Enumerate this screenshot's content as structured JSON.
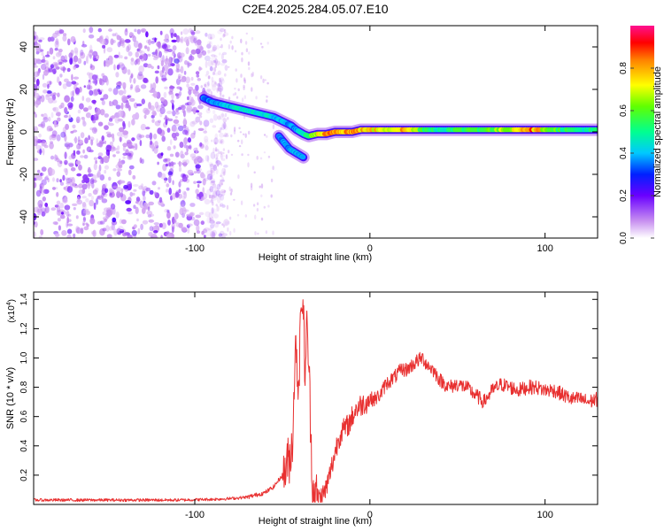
{
  "title": "C2E4.2025.284.05.07.E10",
  "chart_data": [
    {
      "type": "heatmap",
      "xlabel": "Height of straight line (km)",
      "ylabel": "Frequency (Hz)",
      "xlim": [
        -192,
        130
      ],
      "ylim": [
        -50,
        50
      ],
      "xticks": [
        -100,
        0,
        100
      ],
      "xtick_labels": [
        "-100",
        "0",
        "100"
      ],
      "yticks": [
        -40,
        -20,
        0,
        20,
        40
      ],
      "ytick_labels": [
        "-40",
        "-20",
        "0",
        "20",
        "40"
      ],
      "colorbar": {
        "label": "Normalized spectral amplitude",
        "range": [
          0,
          1
        ],
        "ticks": [
          0.0,
          0.2,
          0.4,
          0.6,
          0.8
        ],
        "tick_labels": [
          "0.0",
          "0.2",
          "0.4",
          "0.6",
          "0.8"
        ]
      },
      "noise_region": {
        "x_range": [
          -192,
          -90
        ],
        "y_range": [
          -50,
          48
        ]
      },
      "ridge": {
        "x": [
          -95,
          -90,
          -85,
          -80,
          -75,
          -70,
          -65,
          -60,
          -55,
          -50,
          -45,
          -42,
          -38,
          -35,
          -30,
          -25,
          -20,
          -15,
          -10,
          -5,
          0,
          10,
          20,
          30,
          40,
          50,
          60,
          70,
          80,
          90,
          100,
          110,
          120,
          130
        ],
        "y": [
          16,
          14,
          13,
          12,
          11,
          10,
          9,
          8,
          7,
          5,
          3,
          1,
          -1,
          -2,
          -1,
          -1,
          0,
          0,
          0,
          1,
          1,
          1,
          1,
          1,
          1,
          1,
          1,
          1,
          1,
          1,
          1,
          1,
          1,
          1
        ],
        "amplitude": [
          0.35,
          0.38,
          0.4,
          0.42,
          0.45,
          0.45,
          0.45,
          0.45,
          0.42,
          0.4,
          0.38,
          0.38,
          0.45,
          0.55,
          0.7,
          0.8,
          0.85,
          0.85,
          0.85,
          0.8,
          0.75,
          0.75,
          0.8,
          0.6,
          0.5,
          0.55,
          0.6,
          0.6,
          0.7,
          0.9,
          0.7,
          0.55,
          0.5,
          0.5
        ]
      },
      "branch": {
        "x": [
          -52,
          -50,
          -48,
          -46,
          -44,
          -42,
          -40,
          -38
        ],
        "y": [
          -2,
          -4,
          -6,
          -8,
          -9,
          -10,
          -11,
          -12
        ],
        "amplitude": [
          0.35,
          0.35,
          0.38,
          0.38,
          0.4,
          0.4,
          0.4,
          0.4
        ]
      }
    },
    {
      "type": "line",
      "xlabel": "Height of straight line (km)",
      "ylabel": "SNR (10 * v/v)",
      "y_multiplier_label": "(x10",
      "y_multiplier_exp": "4",
      "y_multiplier_close": ")",
      "xlim": [
        -192,
        130
      ],
      "ylim": [
        0,
        1.45
      ],
      "xticks": [
        -100,
        0,
        100
      ],
      "xtick_labels": [
        "-100",
        "0",
        "100"
      ],
      "yticks": [
        0.2,
        0.4,
        0.6,
        0.8,
        1.0,
        1.2,
        1.4
      ],
      "ytick_labels": [
        "0.2",
        "0.4",
        "0.6",
        "0.8",
        "1.0",
        "1.2",
        "1.4"
      ],
      "color": "#e83030",
      "series": [
        {
          "name": "SNR",
          "x": [
            -192,
            -160,
            -130,
            -110,
            -90,
            -80,
            -70,
            -60,
            -55,
            -50,
            -47,
            -45,
            -44,
            -43,
            -42,
            -41,
            -40,
            -39,
            -38,
            -37,
            -36,
            -35,
            -34,
            -33,
            -32,
            -30,
            -28,
            -26,
            -24,
            -22,
            -20,
            -18,
            -16,
            -14,
            -12,
            -10,
            -8,
            -5,
            -2,
            0,
            3,
            6,
            9,
            12,
            15,
            18,
            21,
            24,
            27,
            30,
            33,
            36,
            40,
            45,
            50,
            55,
            60,
            65,
            70,
            75,
            80,
            85,
            90,
            95,
            100,
            105,
            110,
            115,
            120,
            125,
            130
          ],
          "y": [
            0.03,
            0.03,
            0.03,
            0.03,
            0.035,
            0.04,
            0.05,
            0.08,
            0.12,
            0.2,
            0.28,
            0.35,
            0.5,
            0.95,
            1.1,
            0.8,
            1.05,
            1.45,
            1.3,
            0.9,
            1.2,
            1.0,
            0.6,
            0.2,
            0.08,
            0.05,
            0.05,
            0.08,
            0.15,
            0.25,
            0.35,
            0.45,
            0.5,
            0.52,
            0.55,
            0.6,
            0.65,
            0.68,
            0.7,
            0.72,
            0.72,
            0.75,
            0.82,
            0.85,
            0.88,
            0.92,
            0.92,
            0.95,
            0.98,
            1.0,
            0.95,
            0.92,
            0.85,
            0.8,
            0.82,
            0.8,
            0.75,
            0.7,
            0.78,
            0.82,
            0.8,
            0.78,
            0.8,
            0.8,
            0.78,
            0.78,
            0.75,
            0.72,
            0.72,
            0.7,
            0.72
          ]
        }
      ]
    }
  ]
}
